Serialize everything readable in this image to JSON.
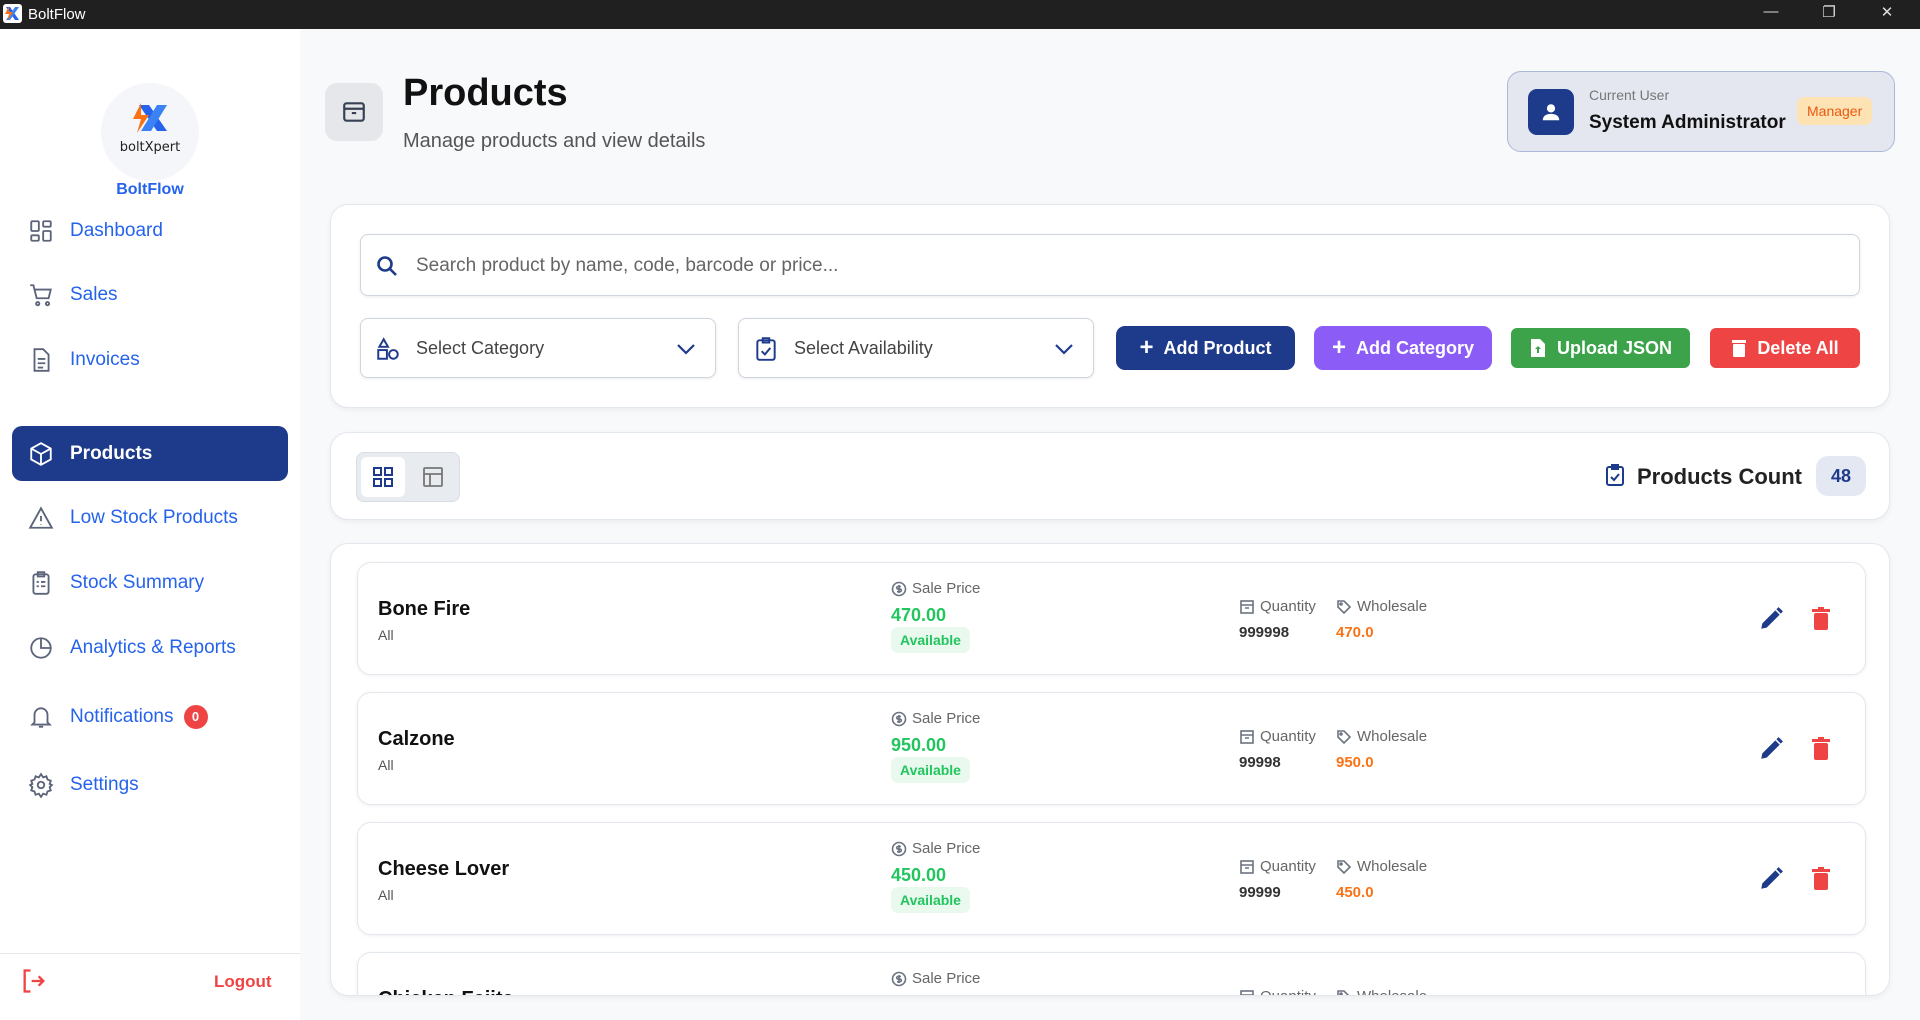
{
  "window": {
    "title": "BoltFlow"
  },
  "sidebar": {
    "logo_text": "boltXpert",
    "brand": "BoltFlow",
    "items": [
      {
        "label": "Dashboard"
      },
      {
        "label": "Sales"
      },
      {
        "label": "Invoices"
      },
      {
        "label": "Products"
      },
      {
        "label": "Low Stock Products"
      },
      {
        "label": "Stock Summary"
      },
      {
        "label": "Analytics & Reports"
      },
      {
        "label": "Notifications",
        "badge": "0"
      },
      {
        "label": "Settings"
      }
    ],
    "logout": "Logout"
  },
  "header": {
    "title": "Products",
    "subtitle": "Manage products and view details"
  },
  "user": {
    "label": "Current User",
    "name": "System Administrator",
    "role": "Manager"
  },
  "filters": {
    "search_placeholder": "Search product by name, code, barcode or price...",
    "category": "Select Category",
    "availability": "Select Availability",
    "add_product": "Add Product",
    "add_category": "Add Category",
    "upload_json": "Upload JSON",
    "delete_all": "Delete All"
  },
  "count": {
    "label": "Products Count",
    "value": "48"
  },
  "labels": {
    "sale_price": "Sale Price",
    "quantity": "Quantity",
    "wholesale": "Wholesale"
  },
  "products": [
    {
      "name": "Bone Fire",
      "category": "All",
      "price": "470.00",
      "status": "Available",
      "quantity": "999998",
      "wholesale": "470.0"
    },
    {
      "name": "Calzone",
      "category": "All",
      "price": "950.00",
      "status": "Available",
      "quantity": "99998",
      "wholesale": "950.0"
    },
    {
      "name": "Cheese Lover",
      "category": "All",
      "price": "450.00",
      "status": "Available",
      "quantity": "99999",
      "wholesale": "450.0"
    },
    {
      "name": "Chicken Fajita",
      "category": "All",
      "price": "",
      "status": "",
      "quantity": "",
      "wholesale": ""
    }
  ],
  "colors": {
    "primary": "#1e3a8a",
    "link": "#2563eb",
    "purple": "#8b5cf6",
    "green": "#3ca34a",
    "red": "#ef4444"
  }
}
